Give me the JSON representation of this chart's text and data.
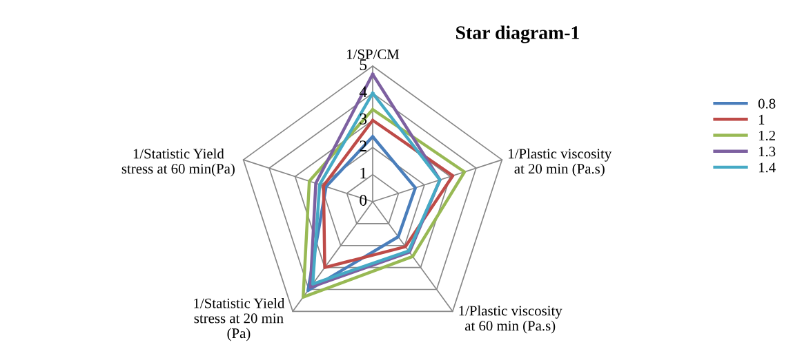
{
  "chart_data": {
    "type": "radar",
    "title": "Star diagram-1",
    "categories": [
      "1/SP/CM",
      "1/Plastic viscosity\nat 20 min (Pa.s)",
      "1/Plastic viscosity\nat 60 min (Pa.s)",
      "1/Statistic Yield\nstress at 20 min\n(Pa)",
      "1/Statistic Yield\nstress at 60 min(Pa)"
    ],
    "ylim": [
      0,
      5
    ],
    "yticks": [
      0,
      1,
      2,
      3,
      4,
      5
    ],
    "grid": true,
    "legend": "right",
    "series": [
      {
        "name": "0.8",
        "color": "#4a7ebb",
        "values": [
          2.4,
          1.65,
          1.6,
          4.05,
          1.8
        ]
      },
      {
        "name": "1",
        "color": "#be4b48",
        "values": [
          3.0,
          3.1,
          2.05,
          3.0,
          1.9
        ]
      },
      {
        "name": "1.2",
        "color": "#98b954",
        "values": [
          3.4,
          3.55,
          2.5,
          4.35,
          2.45
        ]
      },
      {
        "name": "1.3",
        "color": "#7d60a0",
        "values": [
          4.7,
          2.6,
          2.3,
          3.9,
          2.2
        ]
      },
      {
        "name": "1.4",
        "color": "#46aac5",
        "values": [
          4.0,
          2.6,
          2.25,
          3.75,
          2.05
        ]
      }
    ]
  }
}
